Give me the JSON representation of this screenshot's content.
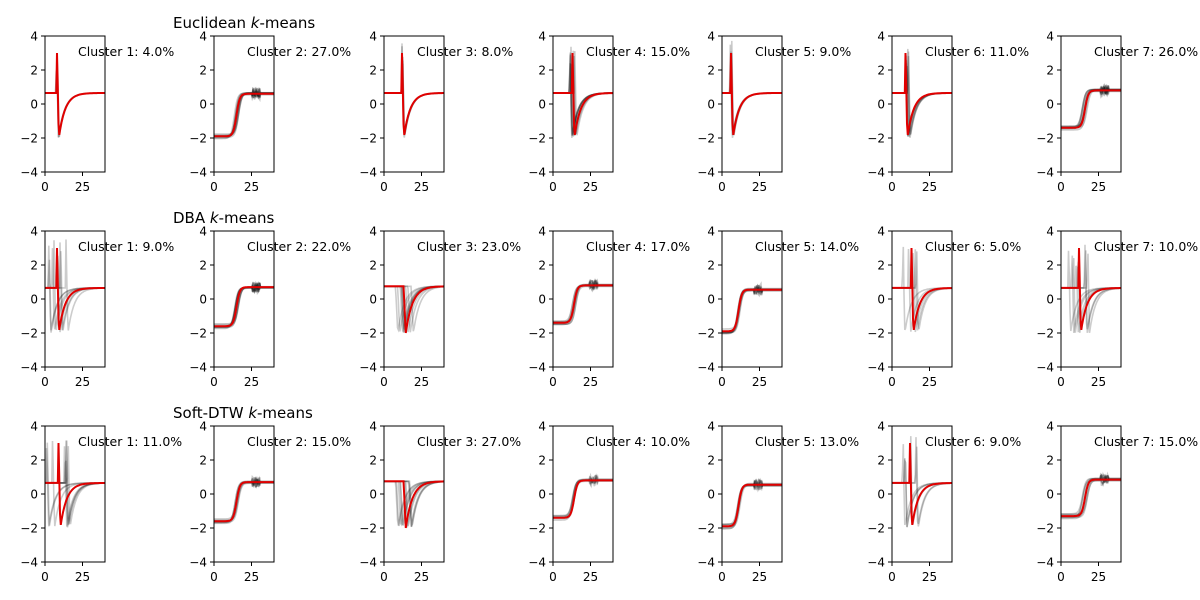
{
  "chart_data": [
    {
      "type": "line",
      "title_text": "Euclidean ",
      "title_italic": "k",
      "title_suffix": "-means",
      "xlim": [
        0,
        40
      ],
      "ylim": [
        -4,
        4
      ],
      "xticks": [
        0,
        25
      ],
      "yticks": [
        -4,
        -2,
        0,
        2,
        4
      ],
      "center_color": "#e00000",
      "sample_color": "#000000",
      "panels": [
        {
          "label": "Cluster 1: 4.0%",
          "shape": "spike",
          "params": {
            "x0": 8,
            "spikeJitter": 0.3,
            "n": 3
          }
        },
        {
          "label": "Cluster 2: 27.0%",
          "shape": "step",
          "params": {
            "x0": 15,
            "low": -1.9,
            "high": 0.6,
            "jitter": 1.5,
            "n": 10
          }
        },
        {
          "label": "Cluster 3: 8.0%",
          "shape": "spike",
          "params": {
            "x0": 12,
            "spikeJitter": 0.5,
            "n": 5
          }
        },
        {
          "label": "Cluster 4: 15.0%",
          "shape": "spike",
          "params": {
            "x0": 13,
            "spikeJitter": 2,
            "n": 10
          }
        },
        {
          "label": "Cluster 5: 9.0%",
          "shape": "spike",
          "params": {
            "x0": 6,
            "spikeJitter": 0.5,
            "n": 5
          }
        },
        {
          "label": "Cluster 6: 11.0%",
          "shape": "spike",
          "params": {
            "x0": 9,
            "spikeJitter": 2.5,
            "n": 8
          }
        },
        {
          "label": "Cluster 7: 26.0%",
          "shape": "step",
          "params": {
            "x0": 16,
            "low": -1.4,
            "high": 0.8,
            "jitter": 2,
            "n": 10
          }
        }
      ]
    },
    {
      "type": "line",
      "title_text": "DBA ",
      "title_italic": "k",
      "title_suffix": "-means",
      "xlim": [
        0,
        40
      ],
      "ylim": [
        -4,
        4
      ],
      "xticks": [
        0,
        25
      ],
      "yticks": [
        -4,
        -2,
        0,
        2,
        4
      ],
      "center_color": "#e00000",
      "sample_color": "#000000",
      "panels": [
        {
          "label": "Cluster 1: 9.0%",
          "shape": "spike",
          "params": {
            "x0": 8,
            "spikeJitter": 8,
            "n": 8
          }
        },
        {
          "label": "Cluster 2: 22.0%",
          "shape": "step",
          "params": {
            "x0": 15,
            "low": -1.6,
            "high": 0.7,
            "jitter": 1.5,
            "n": 10
          }
        },
        {
          "label": "Cluster 3: 23.0%",
          "shape": "spike",
          "params": {
            "x0": 13,
            "spikeJitter": 6,
            "n": 10,
            "noSpike": true
          }
        },
        {
          "label": "Cluster 4: 17.0%",
          "shape": "step",
          "params": {
            "x0": 14,
            "low": -1.4,
            "high": 0.8,
            "jitter": 1.2,
            "n": 8
          }
        },
        {
          "label": "Cluster 5: 14.0%",
          "shape": "step",
          "params": {
            "x0": 11,
            "low": -1.9,
            "high": 0.55,
            "jitter": 1,
            "n": 8
          }
        },
        {
          "label": "Cluster 6: 5.0%",
          "shape": "spike",
          "params": {
            "x0": 13,
            "spikeJitter": 7,
            "n": 5
          }
        },
        {
          "label": "Cluster 7: 10.0%",
          "shape": "spike",
          "params": {
            "x0": 12,
            "spikeJitter": 7,
            "n": 8
          }
        }
      ]
    },
    {
      "type": "line",
      "title_text": "Soft-DTW ",
      "title_italic": "k",
      "title_suffix": "-means",
      "xlim": [
        0,
        40
      ],
      "ylim": [
        -4,
        4
      ],
      "xticks": [
        0,
        25
      ],
      "yticks": [
        -4,
        -2,
        0,
        2,
        4
      ],
      "center_color": "#e00000",
      "sample_color": "#000000",
      "panels": [
        {
          "label": "Cluster 1: 11.0%",
          "shape": "spike",
          "params": {
            "x0": 9,
            "spikeJitter": 8,
            "n": 8
          }
        },
        {
          "label": "Cluster 2: 15.0%",
          "shape": "step",
          "params": {
            "x0": 15,
            "low": -1.6,
            "high": 0.7,
            "jitter": 1.5,
            "n": 8
          }
        },
        {
          "label": "Cluster 3: 27.0%",
          "shape": "spike",
          "params": {
            "x0": 13,
            "spikeJitter": 6,
            "n": 10,
            "noSpike": true
          }
        },
        {
          "label": "Cluster 4: 10.0%",
          "shape": "step",
          "params": {
            "x0": 14,
            "low": -1.4,
            "high": 0.8,
            "jitter": 1.2,
            "n": 6
          }
        },
        {
          "label": "Cluster 5: 13.0%",
          "shape": "step",
          "params": {
            "x0": 11,
            "low": -1.9,
            "high": 0.55,
            "jitter": 1,
            "n": 8
          }
        },
        {
          "label": "Cluster 6: 9.0%",
          "shape": "spike",
          "params": {
            "x0": 12,
            "spikeJitter": 6,
            "n": 6
          }
        },
        {
          "label": "Cluster 7: 15.0%",
          "shape": "step",
          "params": {
            "x0": 16,
            "low": -1.3,
            "high": 0.85,
            "jitter": 2,
            "n": 8
          }
        }
      ]
    }
  ]
}
